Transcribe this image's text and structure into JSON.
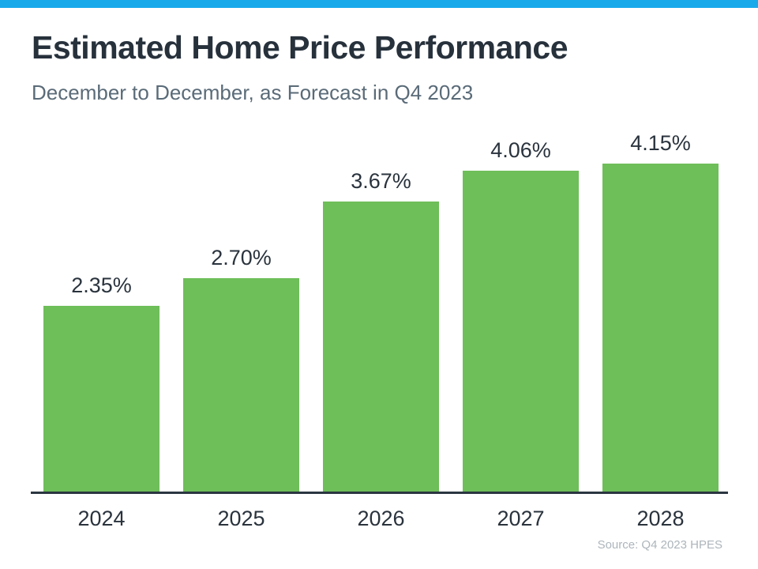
{
  "page": {
    "accent_bar_color": "#18A9EB",
    "background_color": "#FFFFFF"
  },
  "chart_data": {
    "type": "bar",
    "title": "Estimated Home Price Performance",
    "subtitle": "December to December, as Forecast in Q4 2023",
    "categories": [
      "2024",
      "2025",
      "2026",
      "2027",
      "2028"
    ],
    "values": [
      2.35,
      2.7,
      3.67,
      4.06,
      4.15
    ],
    "value_labels": [
      "2.35%",
      "2.70%",
      "3.67%",
      "4.06%",
      "4.15%"
    ],
    "xlabel": "",
    "ylabel": "",
    "ylim": [
      0,
      4.15
    ],
    "grid": false,
    "legend": false,
    "bar_color": "#6EBE59",
    "label_color": "#2A333D",
    "axis_color": "#2B3641",
    "source": "Source: Q4 2023 HPES"
  }
}
